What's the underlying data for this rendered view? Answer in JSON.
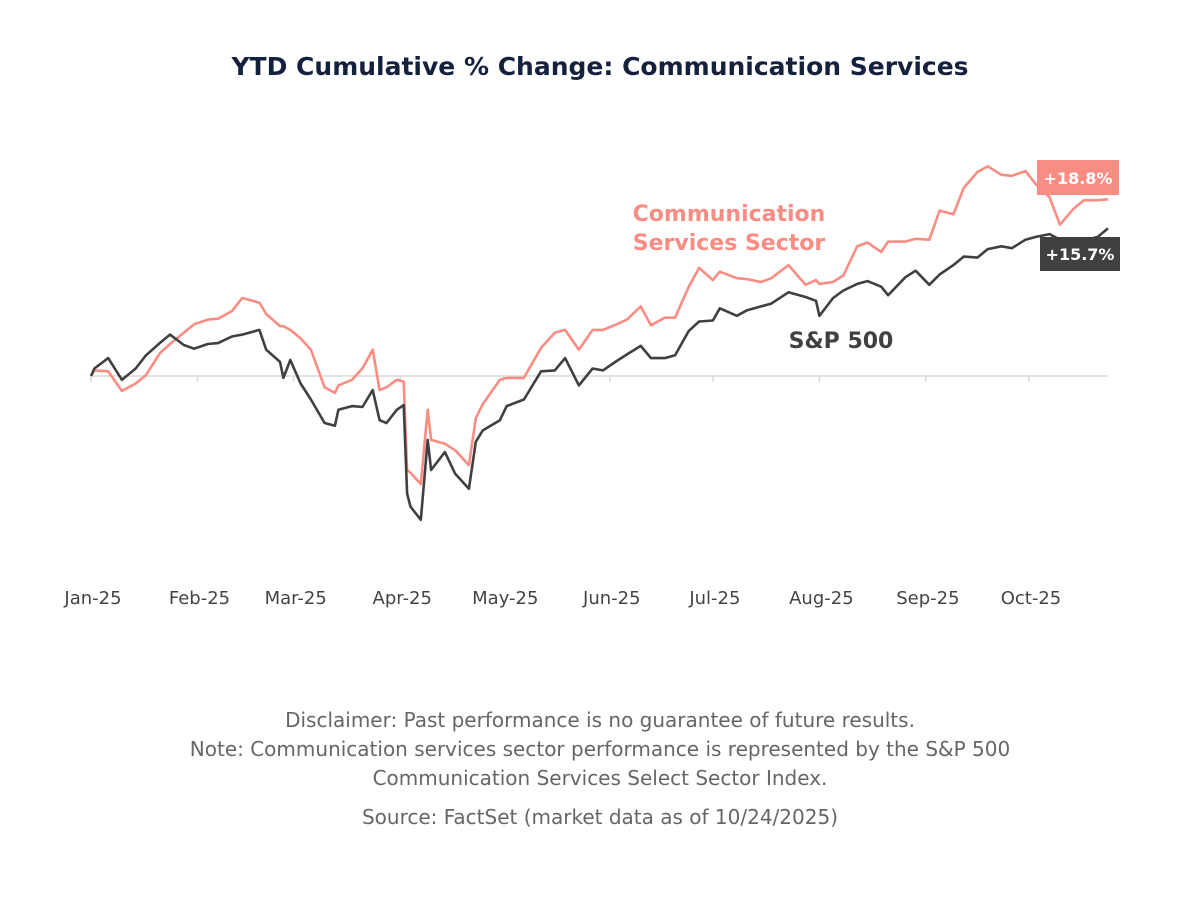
{
  "chart_data": {
    "type": "line",
    "title": "YTD Cumulative % Change: Communication Services",
    "xlabel": "",
    "ylabel": "",
    "x_tick_labels": [
      "Jan-25",
      "Feb-25",
      "Mar-25",
      "Apr-25",
      "May-25",
      "Jun-25",
      "Jul-25",
      "Aug-25",
      "Sep-25",
      "Oct-25"
    ],
    "x_ticks": [
      "2025-01-01",
      "2025-02-01",
      "2025-03-01",
      "2025-04-01",
      "2025-05-01",
      "2025-06-01",
      "2025-07-01",
      "2025-08-01",
      "2025-09-01",
      "2025-10-01"
    ],
    "xlim": [
      "2025-01-01",
      "2025-10-24"
    ],
    "ylim": [
      -22,
      28
    ],
    "y_axis_shown": false,
    "grid": false,
    "zero_line": true,
    "x": [
      "2025-01-01",
      "2025-01-02",
      "2025-01-06",
      "2025-01-10",
      "2025-01-14",
      "2025-01-17",
      "2025-01-21",
      "2025-01-24",
      "2025-01-28",
      "2025-01-31",
      "2025-02-04",
      "2025-02-07",
      "2025-02-11",
      "2025-02-14",
      "2025-02-19",
      "2025-02-21",
      "2025-02-25",
      "2025-02-26",
      "2025-02-28",
      "2025-03-03",
      "2025-03-06",
      "2025-03-10",
      "2025-03-13",
      "2025-03-14",
      "2025-03-18",
      "2025-03-21",
      "2025-03-24",
      "2025-03-26",
      "2025-03-28",
      "2025-03-31",
      "2025-04-02",
      "2025-04-03",
      "2025-04-04",
      "2025-04-07",
      "2025-04-09",
      "2025-04-10",
      "2025-04-14",
      "2025-04-17",
      "2025-04-21",
      "2025-04-23",
      "2025-04-25",
      "2025-04-30",
      "2025-05-02",
      "2025-05-07",
      "2025-05-12",
      "2025-05-16",
      "2025-05-19",
      "2025-05-23",
      "2025-05-27",
      "2025-05-30",
      "2025-06-03",
      "2025-06-06",
      "2025-06-10",
      "2025-06-13",
      "2025-06-17",
      "2025-06-20",
      "2025-06-24",
      "2025-06-27",
      "2025-07-01",
      "2025-07-03",
      "2025-07-08",
      "2025-07-11",
      "2025-07-15",
      "2025-07-18",
      "2025-07-23",
      "2025-07-28",
      "2025-07-31",
      "2025-08-01",
      "2025-08-05",
      "2025-08-08",
      "2025-08-12",
      "2025-08-15",
      "2025-08-19",
      "2025-08-21",
      "2025-08-26",
      "2025-08-29",
      "2025-09-02",
      "2025-09-05",
      "2025-09-09",
      "2025-09-12",
      "2025-09-16",
      "2025-09-19",
      "2025-09-23",
      "2025-09-26",
      "2025-09-30",
      "2025-10-03",
      "2025-10-07",
      "2025-10-10",
      "2025-10-14",
      "2025-10-17",
      "2025-10-21",
      "2025-10-24"
    ],
    "series": [
      {
        "name": "Communication Services Sector",
        "color": "#f98d84",
        "values": [
          0,
          0.6,
          0.5,
          -1.6,
          -0.8,
          0.1,
          2.4,
          3.4,
          4.6,
          5.5,
          6.0,
          6.1,
          6.9,
          8.3,
          7.8,
          6.6,
          5.3,
          5.3,
          4.9,
          4.0,
          2.8,
          -1.2,
          -1.8,
          -1.0,
          -0.4,
          0.8,
          2.8,
          -1.5,
          -1.2,
          -0.4,
          -0.6,
          -10.0,
          -10.3,
          -11.5,
          -3.6,
          -6.8,
          -7.2,
          -7.9,
          -9.5,
          -4.5,
          -3.0,
          -0.4,
          -0.2,
          -0.2,
          3.0,
          4.6,
          4.9,
          2.8,
          4.9,
          4.9,
          5.5,
          6.0,
          7.4,
          5.4,
          6.2,
          6.2,
          9.5,
          11.5,
          10.2,
          11.1,
          10.4,
          10.3,
          10.0,
          10.4,
          11.8,
          9.7,
          10.2,
          9.8,
          10.0,
          10.7,
          13.8,
          14.2,
          13.2,
          14.3,
          14.3,
          14.6,
          14.5,
          17.6,
          17.2,
          20.0,
          21.7,
          22.3,
          21.4,
          21.3,
          21.8,
          20.4,
          19.0,
          16.1,
          17.8,
          18.7,
          18.7,
          18.8
        ]
      },
      {
        "name": "S&P 500",
        "color": "#404040",
        "values": [
          0,
          0.8,
          1.9,
          -0.4,
          0.8,
          2.2,
          3.5,
          4.4,
          3.3,
          2.9,
          3.4,
          3.5,
          4.2,
          4.4,
          4.9,
          2.8,
          1.5,
          -0.2,
          1.7,
          -0.8,
          -2.5,
          -5.0,
          -5.3,
          -3.6,
          -3.2,
          -3.3,
          -1.5,
          -4.7,
          -5.0,
          -3.6,
          -3.1,
          -12.5,
          -13.9,
          -15.3,
          -6.8,
          -10.0,
          -8.1,
          -10.4,
          -12.0,
          -7.0,
          -5.8,
          -4.7,
          -3.2,
          -2.5,
          0.5,
          0.6,
          1.9,
          -1.0,
          0.8,
          0.6,
          1.6,
          2.3,
          3.2,
          1.9,
          1.9,
          2.2,
          4.8,
          5.8,
          5.9,
          7.2,
          6.4,
          7.0,
          7.4,
          7.7,
          8.9,
          8.4,
          8.0,
          6.4,
          8.3,
          9.1,
          9.8,
          10.1,
          9.5,
          8.6,
          10.5,
          11.2,
          9.7,
          10.8,
          11.8,
          12.7,
          12.6,
          13.5,
          13.8,
          13.6,
          14.5,
          14.8,
          15.1,
          14.5,
          14.4,
          14.4,
          14.8,
          15.7
        ]
      }
    ],
    "series_labels": [
      "Communication",
      "Services Sector",
      "S&P 500"
    ],
    "end_labels": [
      "+18.8%",
      "+15.7%"
    ],
    "legend": "inline"
  },
  "notes": {
    "disclaimer": "Disclaimer: Past performance is no guarantee of future results.",
    "note_line1": "Note: Communication services sector performance is represented by the S&P 500",
    "note_line2": "Communication Services Select Sector Index.",
    "source": "Source: FactSet (market data as of 10/24/2025)"
  }
}
